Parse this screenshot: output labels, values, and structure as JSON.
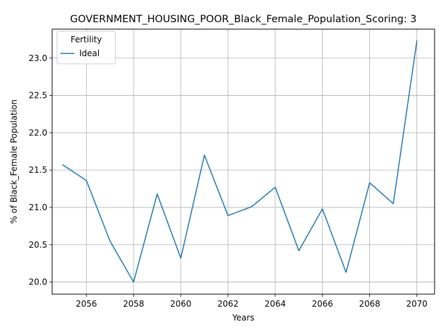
{
  "chart_data": {
    "type": "line",
    "title": "GOVERNMENT_HOUSING_POOR_Black_Female_Population_Scoring: 3",
    "xlabel": "Years",
    "ylabel": "% of Black_Female Population",
    "xlim": [
      2054.55,
      2070.75
    ],
    "ylim": [
      19.838,
      23.388
    ],
    "x_ticks": [
      2056,
      2058,
      2060,
      2062,
      2064,
      2066,
      2068,
      2070
    ],
    "y_ticks": [
      20.0,
      20.5,
      21.0,
      21.5,
      22.0,
      22.5,
      23.0
    ],
    "grid": true,
    "legend": {
      "title": "Fertility",
      "placement": "top-left"
    },
    "x": [
      2055,
      2056,
      2057,
      2058,
      2059,
      2060,
      2061,
      2062,
      2063,
      2064,
      2065,
      2066,
      2067,
      2068,
      2069,
      2070
    ],
    "series": [
      {
        "name": "Ideal",
        "color": "#1f77b4",
        "values": [
          21.57,
          21.36,
          20.55,
          20.0,
          21.18,
          20.32,
          21.7,
          20.89,
          21.01,
          21.27,
          20.42,
          20.98,
          20.13,
          21.33,
          21.05,
          23.23
        ]
      }
    ]
  }
}
